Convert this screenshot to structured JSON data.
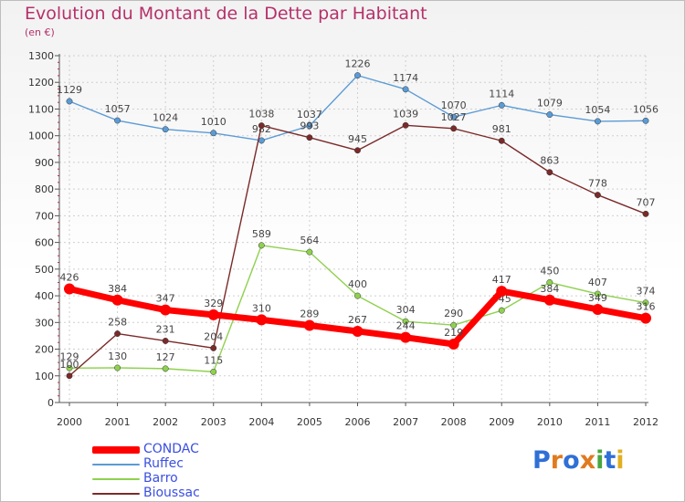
{
  "title": "Evolution du Montant de la Dette par Habitant",
  "subtitle": "(en €)",
  "brand": {
    "letters": [
      "P",
      "r",
      "o",
      "x",
      "i",
      "t",
      "i"
    ],
    "colors": [
      "#2f6fd6",
      "#e07b1f",
      "#2f6fd6",
      "#e07b1f",
      "#48a640",
      "#2f6fd6",
      "#e0b01f"
    ]
  },
  "chart_data": {
    "type": "line",
    "x": [
      2000,
      2001,
      2002,
      2003,
      2004,
      2005,
      2006,
      2007,
      2008,
      2009,
      2010,
      2011,
      2012
    ],
    "ylim": [
      0,
      1300
    ],
    "yticks": [
      0,
      100,
      200,
      300,
      400,
      500,
      600,
      700,
      800,
      900,
      1000,
      1100,
      1200,
      1300
    ],
    "grid": true,
    "legend_position": "bottom-left",
    "series": [
      {
        "name": "Ruffec",
        "color": "#5b9bd5",
        "values": [
          1129,
          1057,
          1024,
          1010,
          982,
          1037,
          1226,
          1174,
          1070,
          1114,
          1079,
          1054,
          1056
        ]
      },
      {
        "name": "Barro",
        "color": "#8fd14f",
        "values": [
          129,
          130,
          127,
          115,
          589,
          564,
          400,
          304,
          290,
          345,
          450,
          407,
          374
        ]
      },
      {
        "name": "Bioussac",
        "color": "#7b2a2a",
        "values": [
          100,
          258,
          231,
          204,
          1038,
          993,
          945,
          1039,
          1027,
          981,
          863,
          778,
          707
        ]
      },
      {
        "name": "CONDAC",
        "color": "#ff0000",
        "values": [
          426,
          384,
          347,
          329,
          310,
          289,
          267,
          244,
          219,
          417,
          384,
          349,
          316
        ]
      }
    ]
  }
}
